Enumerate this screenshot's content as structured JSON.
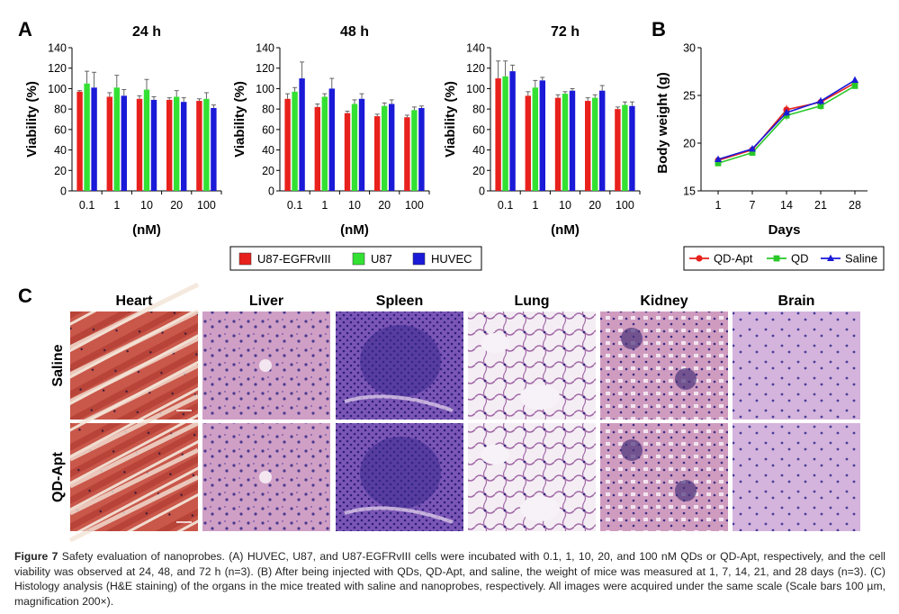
{
  "panel_letters": {
    "a": "A",
    "b": "B",
    "c": "C"
  },
  "chart_data": [
    {
      "type": "bar",
      "title": "24 h",
      "categories": [
        "0.1",
        "1",
        "10",
        "20",
        "100"
      ],
      "xlabel": "(nM)",
      "ylabel": "Viability (%)",
      "ylim": [
        0,
        140
      ],
      "yticks": [
        0,
        20,
        40,
        60,
        80,
        100,
        120,
        140
      ],
      "series": [
        {
          "name": "U87-EGFRvIII",
          "values": [
            97,
            92,
            90,
            89,
            88
          ],
          "errors": [
            1,
            4,
            3,
            2,
            2
          ]
        },
        {
          "name": "U87",
          "values": [
            105,
            101,
            99,
            92,
            90
          ],
          "errors": [
            12,
            12,
            10,
            6,
            6
          ]
        },
        {
          "name": "HUVEC",
          "values": [
            101,
            93,
            89,
            87,
            81
          ],
          "errors": [
            15,
            6,
            3,
            4,
            3
          ]
        }
      ]
    },
    {
      "type": "bar",
      "title": "48 h",
      "categories": [
        "0.1",
        "1",
        "10",
        "20",
        "100"
      ],
      "xlabel": "(nM)",
      "ylabel": "Viability (%)",
      "ylim": [
        0,
        140
      ],
      "yticks": [
        0,
        20,
        40,
        60,
        80,
        100,
        120,
        140
      ],
      "series": [
        {
          "name": "U87-EGFRvIII",
          "values": [
            90,
            82,
            76,
            73,
            72
          ],
          "errors": [
            5,
            3,
            2,
            2,
            2
          ]
        },
        {
          "name": "U87",
          "values": [
            97,
            92,
            85,
            83,
            79
          ],
          "errors": [
            4,
            3,
            4,
            3,
            3
          ]
        },
        {
          "name": "HUVEC",
          "values": [
            110,
            100,
            90,
            85,
            81
          ],
          "errors": [
            16,
            10,
            5,
            4,
            2
          ]
        }
      ]
    },
    {
      "type": "bar",
      "title": "72 h",
      "categories": [
        "0.1",
        "1",
        "10",
        "20",
        "100"
      ],
      "xlabel": "(nM)",
      "ylabel": "Viability (%)",
      "ylim": [
        0,
        140
      ],
      "yticks": [
        0,
        20,
        40,
        60,
        80,
        100,
        120,
        140
      ],
      "series": [
        {
          "name": "U87-EGFRvIII",
          "values": [
            110,
            93,
            91,
            88,
            80
          ],
          "errors": [
            17,
            4,
            3,
            3,
            2
          ]
        },
        {
          "name": "U87",
          "values": [
            112,
            101,
            95,
            91,
            84
          ],
          "errors": [
            15,
            7,
            2,
            3,
            3
          ]
        },
        {
          "name": "HUVEC",
          "values": [
            117,
            108,
            98,
            98,
            83
          ],
          "errors": [
            6,
            3,
            2,
            5,
            4
          ]
        }
      ]
    },
    {
      "type": "line",
      "title": "",
      "x": [
        "1",
        "7",
        "14",
        "21",
        "28"
      ],
      "xlabel": "Days",
      "ylabel": "Body weight (g)",
      "ylim": [
        15,
        30
      ],
      "yticks": [
        15,
        20,
        25,
        30
      ],
      "series": [
        {
          "name": "QD-Apt",
          "values": [
            18.2,
            19.3,
            23.5,
            24.3,
            26.3
          ],
          "errors": [
            0.3,
            0.3,
            0.5,
            0.4,
            0.3
          ]
        },
        {
          "name": "QD",
          "values": [
            17.9,
            19.0,
            22.9,
            23.9,
            26.0
          ],
          "errors": [
            0.3,
            0.3,
            0.5,
            0.4,
            0.3
          ]
        },
        {
          "name": "Saline",
          "values": [
            18.3,
            19.4,
            23.2,
            24.4,
            26.6
          ],
          "errors": [
            0.3,
            0.3,
            0.4,
            0.4,
            0.3
          ]
        }
      ]
    }
  ],
  "colors": {
    "U87-EGFRvIII": "#e8211c",
    "U87": "#33e133",
    "HUVEC": "#1a1ad8",
    "QD-Apt": "#e8211c",
    "QD": "#28c828",
    "Saline": "#1a1ad8"
  },
  "histology": {
    "organs": [
      "Heart",
      "Liver",
      "Spleen",
      "Lung",
      "Kidney",
      "Brain"
    ],
    "rows": [
      "Saline",
      "QD-Apt"
    ]
  },
  "caption": {
    "label": "Figure 7",
    "text": " Safety evaluation of nanoprobes. (A) HUVEC, U87, and U87-EGFRvIII cells were incubated with 0.1, 1, 10, 20, and 100 nM QDs or QD-Apt, respectively, and the cell viability was observed at 24, 48, and 72 h (n=3). (B) After being injected with QDs, QD-Apt, and saline, the weight of mice was measured at 1, 7, 14, 21, and 28 days (n=3). (C) Histology analysis (H&E staining) of the organs in the mice treated with saline and nanoprobes, respectively. All images were acquired under the same scale (Scale bars 100 µm, magnification 200×)."
  }
}
